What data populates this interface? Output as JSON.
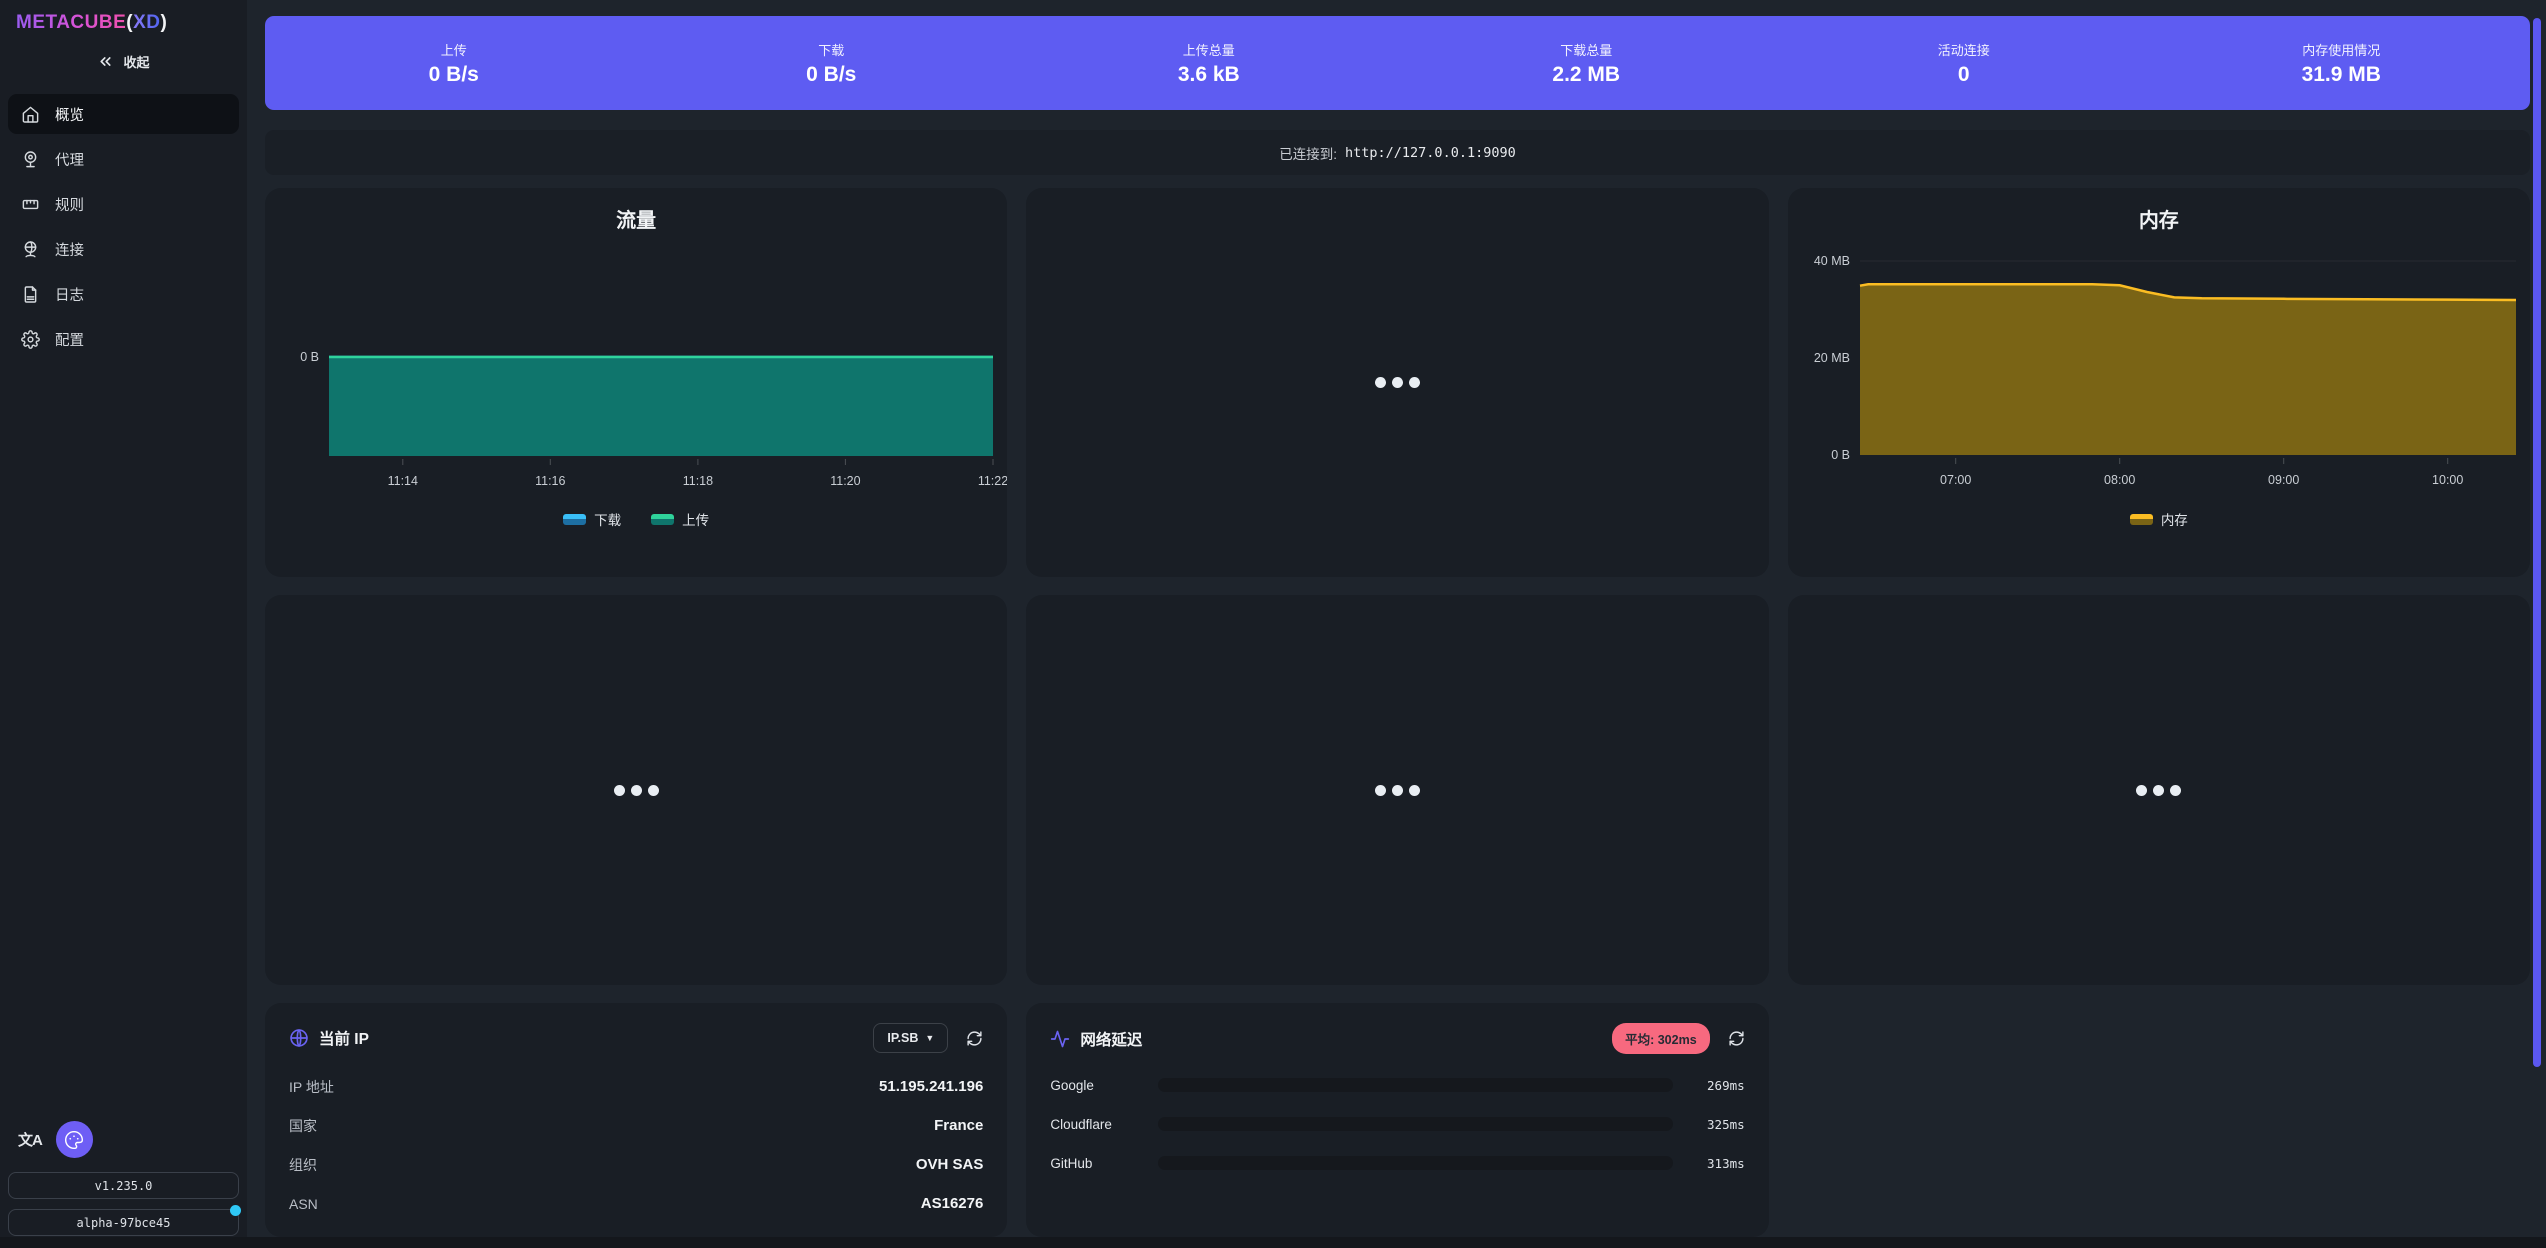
{
  "logo": {
    "brand": "METACUBE",
    "paren_open": "(",
    "accent": "XD",
    "paren_close": ")"
  },
  "sidebar": {
    "collapse_label": "收起",
    "nav": [
      {
        "label": "概览",
        "active": true
      },
      {
        "label": "代理",
        "active": false
      },
      {
        "label": "规则",
        "active": false
      },
      {
        "label": "连接",
        "active": false
      },
      {
        "label": "日志",
        "active": false
      },
      {
        "label": "配置",
        "active": false
      }
    ],
    "version": "v1.235.0",
    "build": "alpha-97bce45"
  },
  "stats": {
    "items": [
      {
        "label": "上传",
        "value": "0 B/s"
      },
      {
        "label": "下载",
        "value": "0 B/s"
      },
      {
        "label": "上传总量",
        "value": "3.6 kB"
      },
      {
        "label": "下载总量",
        "value": "2.2 MB"
      },
      {
        "label": "活动连接",
        "value": "0"
      },
      {
        "label": "内存使用情况",
        "value": "31.9 MB"
      }
    ]
  },
  "connection": {
    "prefix": "已连接到:",
    "url": "http://127.0.0.1:9090"
  },
  "chart_data": [
    {
      "type": "area",
      "title": "流量",
      "x_min": "11:13",
      "x_max": "11:22",
      "x_ticks": [
        "11:14",
        "11:16",
        "11:18",
        "11:20",
        "11:22"
      ],
      "y_ticks": [
        {
          "label": "0 B",
          "value": 0
        }
      ],
      "y_min": -1,
      "y_max": 1,
      "gridline_values": [],
      "legend_position": "bottom",
      "series": [
        {
          "name": "下载",
          "line_color": "#3abff8",
          "fill_color": "#1d6fa3",
          "points": [
            [
              "11:13",
              0
            ],
            [
              "11:22",
              0
            ]
          ]
        },
        {
          "name": "上传",
          "line_color": "#2fd39b",
          "fill_color": "#0f756c",
          "points": [
            [
              "11:13",
              0
            ],
            [
              "11:22",
              0
            ]
          ]
        }
      ]
    },
    {
      "type": "area",
      "title": "内存",
      "x_min": "06:25",
      "x_max": "10:25",
      "x_ticks": [
        "07:00",
        "08:00",
        "09:00",
        "10:00"
      ],
      "y_ticks": [
        {
          "label": "40 MB",
          "value": 40
        },
        {
          "label": "20 MB",
          "value": 20
        },
        {
          "label": "0 B",
          "value": 0
        }
      ],
      "y_min": 0,
      "y_max": 40,
      "gridline_values": [
        40,
        20
      ],
      "legend_position": "bottom",
      "series": [
        {
          "name": "内存",
          "line_color": "#fbbd23",
          "fill_color": "#7a6415",
          "points": [
            [
              "06:25",
              34.9
            ],
            [
              "06:28",
              35.2
            ],
            [
              "07:50",
              35.2
            ],
            [
              "08:00",
              35.0
            ],
            [
              "08:10",
              33.6
            ],
            [
              "08:20",
              32.5
            ],
            [
              "08:30",
              32.3
            ],
            [
              "09:00",
              32.2
            ],
            [
              "09:30",
              32.1
            ],
            [
              "10:00",
              32.05
            ],
            [
              "10:25",
              31.95
            ]
          ]
        }
      ]
    }
  ],
  "ip_panel": {
    "title": "当前 IP",
    "source_select": "IP.SB",
    "rows": [
      {
        "label": "IP 地址",
        "value": "51.195.241.196"
      },
      {
        "label": "国家",
        "value": "France"
      },
      {
        "label": "组织",
        "value": "OVH SAS"
      },
      {
        "label": "ASN",
        "value": "AS16276"
      }
    ]
  },
  "latency_panel": {
    "title": "网络延迟",
    "average_badge": "平均: 302ms",
    "scale_max_ms": 500,
    "rows": [
      {
        "name": "Google",
        "ms": 269,
        "display": "269ms",
        "color": "#fbbd23"
      },
      {
        "name": "Cloudflare",
        "ms": 325,
        "display": "325ms",
        "color": "#f7697f"
      },
      {
        "name": "GitHub",
        "ms": 313,
        "display": "313ms",
        "color": "#f7697f"
      }
    ]
  },
  "colors": {
    "accent_purple": "#5e5cf2",
    "panel_bg": "#191e25",
    "sidebar_bg": "#191d24",
    "page_bg": "#1e242c",
    "success_green": "#2fd39b",
    "info_blue": "#3abff8",
    "warning_yellow": "#fbbd23",
    "error_pink": "#f7697f",
    "cyan_badge": "#2fc8f6"
  }
}
